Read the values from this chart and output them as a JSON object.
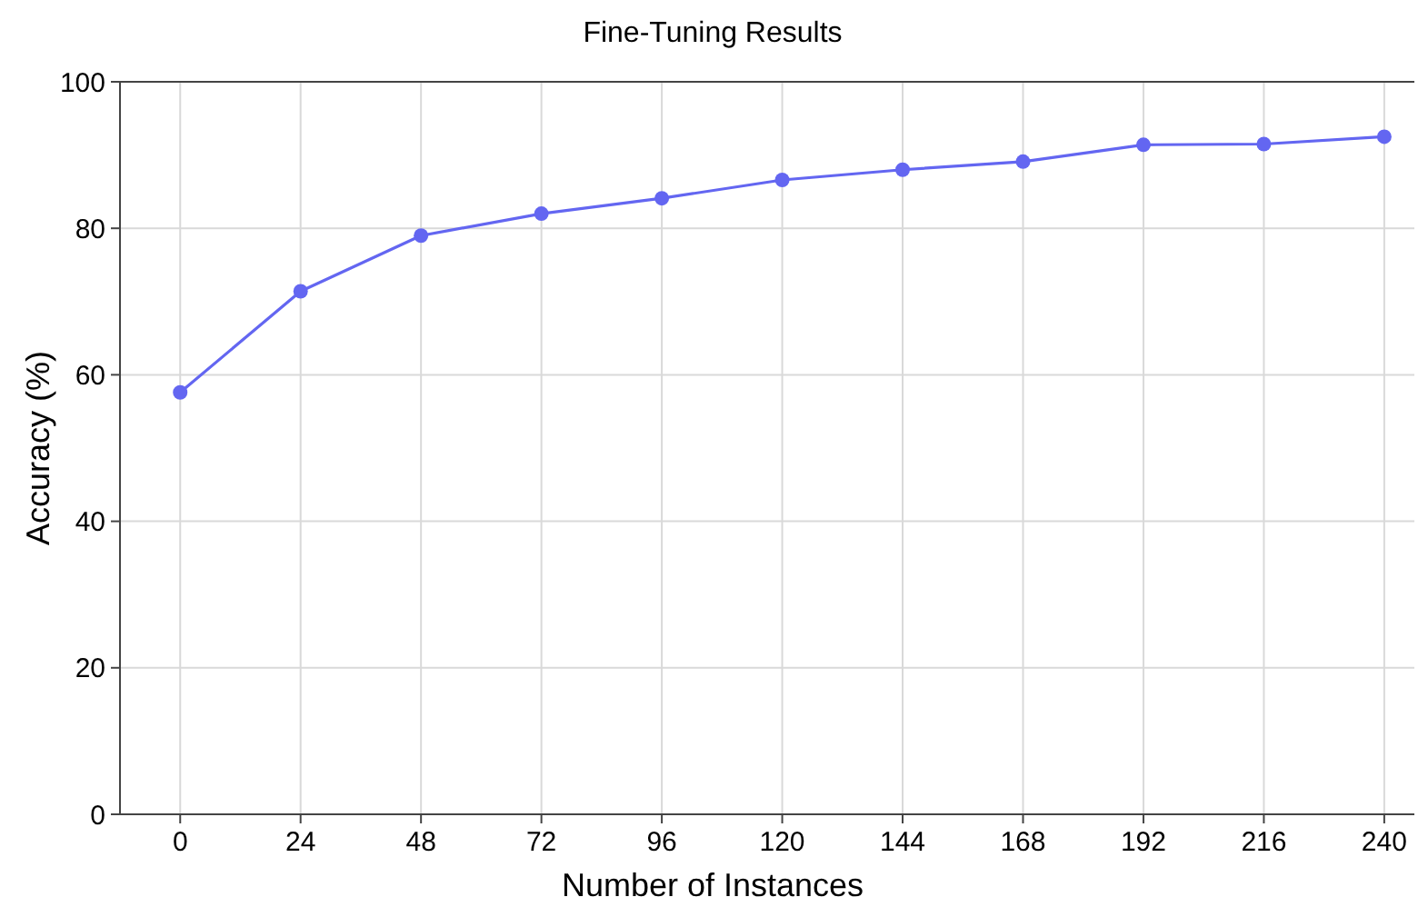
{
  "chart_data": {
    "type": "line",
    "title": "Fine-Tuning Results",
    "xlabel": "Number of Instances",
    "ylabel": "Accuracy (%)",
    "x": [
      0,
      24,
      48,
      72,
      96,
      120,
      144,
      168,
      192,
      216,
      240
    ],
    "series": [
      {
        "color": "#6366f1",
        "values": [
          57.6,
          71.4,
          79.0,
          82.0,
          84.1,
          86.6,
          88.0,
          89.1,
          91.4,
          91.5,
          92.5
        ]
      }
    ],
    "xlim": [
      -12,
      246
    ],
    "xticks": [
      0,
      24,
      48,
      72,
      96,
      120,
      144,
      168,
      192,
      216,
      240
    ],
    "ylim": [
      0,
      100
    ],
    "yticks": [
      0,
      20,
      40,
      60,
      80,
      100
    ],
    "grid": true,
    "marker": "circle",
    "line_style": "solid"
  }
}
